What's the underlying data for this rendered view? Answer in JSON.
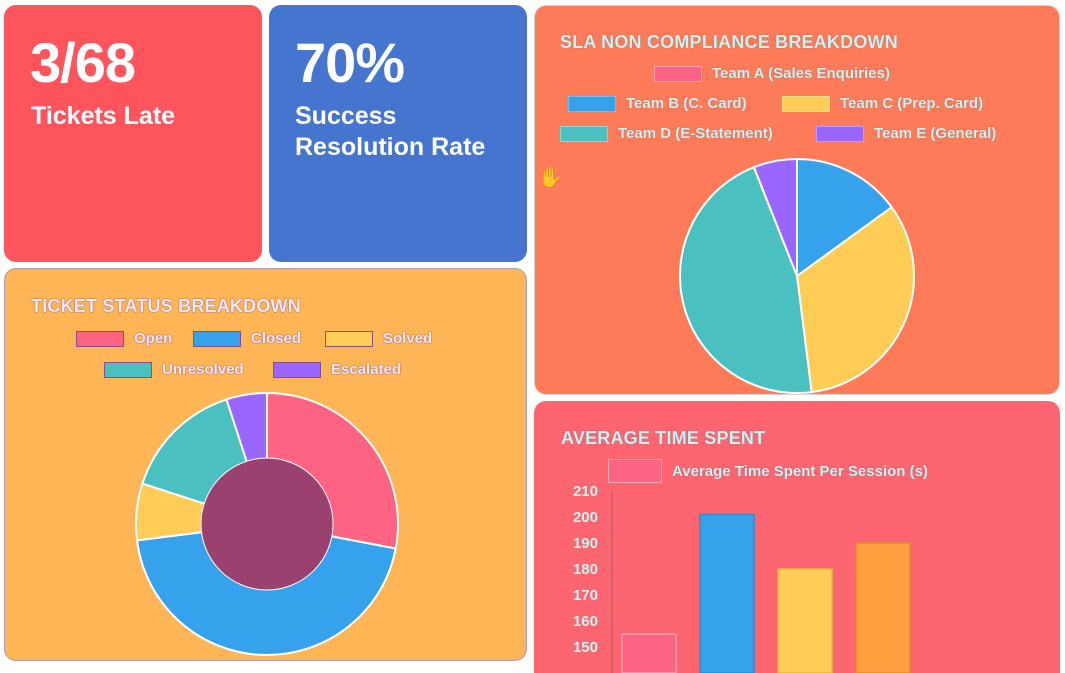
{
  "kpis": {
    "late": {
      "value": "3/68",
      "label": "Tickets Late"
    },
    "rate": {
      "value": "70%",
      "label_line1": "Success",
      "label_line2": "Resolution Rate"
    }
  },
  "sla": {
    "title": "SLA NON COMPLIANCE BREAKDOWN",
    "legend": [
      "Team A (Sales Enquiries)",
      "Team B (C. Card)",
      "Team C (Prep. Card)",
      "Team D (E-Statement)",
      "Team E (General)"
    ]
  },
  "status": {
    "title": "TICKET STATUS BREAKDOWN",
    "legend": [
      "Open",
      "Closed",
      "Solved",
      "Unresolved",
      "Escalated"
    ]
  },
  "time": {
    "title": "AVERAGE TIME SPENT",
    "legend": [
      "Average Time Spent Per Session (s)"
    ]
  },
  "colors": {
    "red": "#ff6384",
    "blue": "#36a2eb",
    "yellow": "#ffcd56",
    "teal": "#4bc0c0",
    "purple": "#9966ff",
    "orange": "#ff9f40",
    "donut_center": "#9b416f"
  },
  "chart_data": [
    {
      "type": "pie",
      "categories": [
        "Team A (Sales Enquiries)",
        "Team B (C. Card)",
        "Team C (Prep. Card)",
        "Team D (E-Statement)",
        "Team E (General)"
      ],
      "values": [
        0,
        15,
        33,
        46,
        6
      ]
    },
    {
      "type": "pie",
      "subtype": "doughnut",
      "categories": [
        "Open",
        "Closed",
        "Solved",
        "Unresolved",
        "Escalated"
      ],
      "values": [
        28,
        45,
        7,
        15,
        5
      ]
    },
    {
      "type": "bar",
      "series": [
        {
          "name": "Average Time Spent Per Session (s)",
          "values": [
            155,
            201,
            180,
            190
          ]
        }
      ],
      "ylim": [
        140,
        210
      ],
      "yticks": [
        150,
        160,
        170,
        180,
        190,
        200,
        210
      ]
    }
  ]
}
